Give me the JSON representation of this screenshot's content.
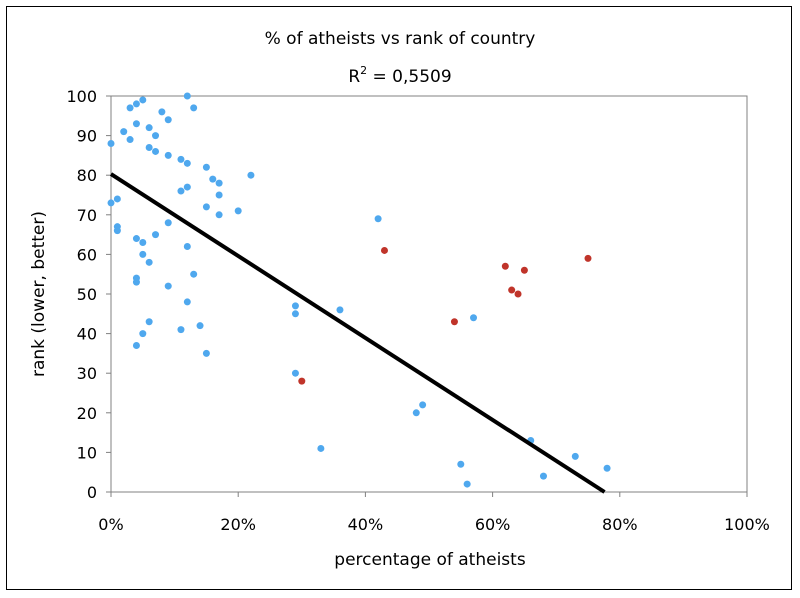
{
  "chart_data": {
    "type": "scatter",
    "title": "% of atheists vs rank of country",
    "subtitle": {
      "prefix": "R",
      "superscript": "2",
      "suffix": " = 0,5509"
    },
    "xlabel": "percentage of atheists",
    "ylabel": "rank (lower, better)",
    "xlim": [
      0,
      1
    ],
    "ylim": [
      0,
      100
    ],
    "x_ticks": [
      {
        "value": 0,
        "label": "0%"
      },
      {
        "value": 0.2,
        "label": "20%"
      },
      {
        "value": 0.4,
        "label": "40%"
      },
      {
        "value": 0.6,
        "label": "60%"
      },
      {
        "value": 0.8,
        "label": "80%"
      },
      {
        "value": 1.0,
        "label": "100%"
      }
    ],
    "y_ticks": [
      {
        "value": 0,
        "label": "0"
      },
      {
        "value": 10,
        "label": "10"
      },
      {
        "value": 20,
        "label": "20"
      },
      {
        "value": 30,
        "label": "30"
      },
      {
        "value": 40,
        "label": "40"
      },
      {
        "value": 50,
        "label": "50"
      },
      {
        "value": 60,
        "label": "60"
      },
      {
        "value": 70,
        "label": "70"
      },
      {
        "value": 80,
        "label": "80"
      },
      {
        "value": 90,
        "label": "90"
      },
      {
        "value": 100,
        "label": "100"
      }
    ],
    "grid": false,
    "legend": "none",
    "series": [
      {
        "color": "#4fa8ee",
        "points": [
          [
            0.12,
            100
          ],
          [
            0.05,
            99
          ],
          [
            0.04,
            98
          ],
          [
            0.03,
            97
          ],
          [
            0.13,
            97
          ],
          [
            0.08,
            96
          ],
          [
            0.09,
            94
          ],
          [
            0.04,
            93
          ],
          [
            0.06,
            92
          ],
          [
            0.02,
            91
          ],
          [
            0.07,
            90
          ],
          [
            0.03,
            89
          ],
          [
            0.0,
            88
          ],
          [
            0.06,
            87
          ],
          [
            0.07,
            86
          ],
          [
            0.09,
            85
          ],
          [
            0.11,
            84
          ],
          [
            0.12,
            83
          ],
          [
            0.15,
            82
          ],
          [
            0.22,
            80
          ],
          [
            0.16,
            79
          ],
          [
            0.17,
            78
          ],
          [
            0.12,
            77
          ],
          [
            0.11,
            76
          ],
          [
            0.17,
            75
          ],
          [
            0.01,
            74
          ],
          [
            0.0,
            73
          ],
          [
            0.15,
            72
          ],
          [
            0.2,
            71
          ],
          [
            0.17,
            70
          ],
          [
            0.42,
            69
          ],
          [
            0.09,
            68
          ],
          [
            0.01,
            67
          ],
          [
            0.01,
            66
          ],
          [
            0.07,
            65
          ],
          [
            0.04,
            64
          ],
          [
            0.05,
            63
          ],
          [
            0.12,
            62
          ],
          [
            0.05,
            60
          ],
          [
            0.06,
            58
          ],
          [
            0.13,
            55
          ],
          [
            0.04,
            54
          ],
          [
            0.04,
            53
          ],
          [
            0.09,
            52
          ],
          [
            0.12,
            48
          ],
          [
            0.29,
            47
          ],
          [
            0.36,
            46
          ],
          [
            0.29,
            45
          ],
          [
            0.57,
            44
          ],
          [
            0.06,
            43
          ],
          [
            0.14,
            42
          ],
          [
            0.11,
            41
          ],
          [
            0.05,
            40
          ],
          [
            0.04,
            37
          ],
          [
            0.15,
            35
          ],
          [
            0.29,
            30
          ],
          [
            0.49,
            22
          ],
          [
            0.48,
            20
          ],
          [
            0.66,
            13
          ],
          [
            0.33,
            11
          ],
          [
            0.73,
            9
          ],
          [
            0.55,
            7
          ],
          [
            0.78,
            6
          ],
          [
            0.68,
            4
          ],
          [
            0.56,
            2
          ]
        ]
      },
      {
        "color": "#c0342a",
        "points": [
          [
            0.43,
            61
          ],
          [
            0.75,
            59
          ],
          [
            0.62,
            57
          ],
          [
            0.65,
            56
          ],
          [
            0.63,
            51
          ],
          [
            0.64,
            50
          ],
          [
            0.54,
            43
          ],
          [
            0.3,
            28
          ]
        ]
      }
    ],
    "trendline": {
      "color": "#000000",
      "points": [
        [
          0,
          80.3
        ],
        [
          0.776,
          0
        ]
      ]
    }
  }
}
